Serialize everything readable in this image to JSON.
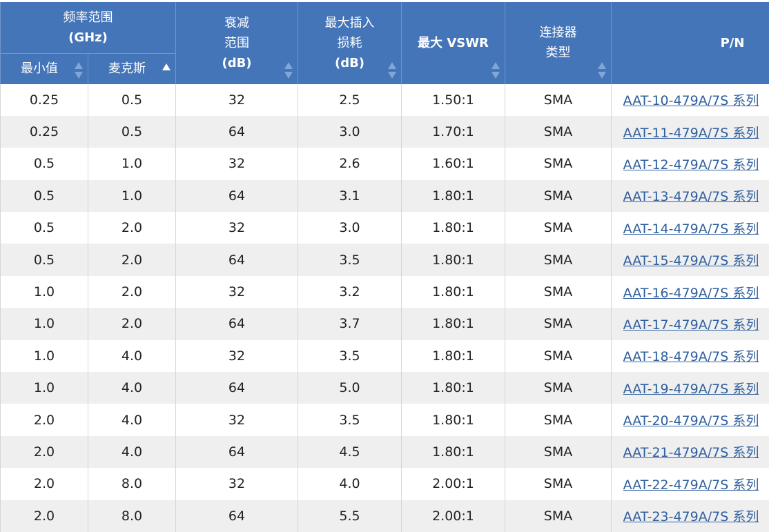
{
  "header": {
    "freq_group": [
      "频率范围",
      "(GHz)"
    ],
    "min": "最小值",
    "max": "麦克斯",
    "atten": [
      "衰减",
      "范围",
      "(dB)"
    ],
    "insertion": [
      "最大插入",
      "损耗",
      "(dB)"
    ],
    "vswr": "最大 VSWR",
    "connector": [
      "连接器",
      "类型"
    ],
    "pn": "P/N"
  },
  "sort": {
    "sorted_column": "麦克斯",
    "direction": "ascending"
  },
  "colors": {
    "header_bg": "#4475b8",
    "link": "#2f5f9e",
    "alt_row": "#efefef"
  },
  "rows": [
    [
      "0.25",
      "0.5",
      "32",
      "2.5",
      "1.50:1",
      "SMA",
      "AAT-10-479A/7S 系列"
    ],
    [
      "0.25",
      "0.5",
      "64",
      "3.0",
      "1.70:1",
      "SMA",
      "AAT-11-479A/7S 系列"
    ],
    [
      "0.5",
      "1.0",
      "32",
      "2.6",
      "1.60:1",
      "SMA",
      "AAT-12-479A/7S 系列"
    ],
    [
      "0.5",
      "1.0",
      "64",
      "3.1",
      "1.80:1",
      "SMA",
      "AAT-13-479A/7S 系列"
    ],
    [
      "0.5",
      "2.0",
      "32",
      "3.0",
      "1.80:1",
      "SMA",
      "AAT-14-479A/7S 系列"
    ],
    [
      "0.5",
      "2.0",
      "64",
      "3.5",
      "1.80:1",
      "SMA",
      "AAT-15-479A/7S 系列"
    ],
    [
      "1.0",
      "2.0",
      "32",
      "3.2",
      "1.80:1",
      "SMA",
      "AAT-16-479A/7S 系列"
    ],
    [
      "1.0",
      "2.0",
      "64",
      "3.7",
      "1.80:1",
      "SMA",
      "AAT-17-479A/7S 系列"
    ],
    [
      "1.0",
      "4.0",
      "32",
      "3.5",
      "1.80:1",
      "SMA",
      "AAT-18-479A/7S 系列"
    ],
    [
      "1.0",
      "4.0",
      "64",
      "5.0",
      "1.80:1",
      "SMA",
      "AAT-19-479A/7S 系列"
    ],
    [
      "2.0",
      "4.0",
      "32",
      "3.5",
      "1.80:1",
      "SMA",
      "AAT-20-479A/7S 系列"
    ],
    [
      "2.0",
      "4.0",
      "64",
      "4.5",
      "1.80:1",
      "SMA",
      "AAT-21-479A/7S 系列"
    ],
    [
      "2.0",
      "8.0",
      "32",
      "4.0",
      "2.00:1",
      "SMA",
      "AAT-22-479A/7S 系列"
    ],
    [
      "2.0",
      "8.0",
      "64",
      "5.5",
      "2.00:1",
      "SMA",
      "AAT-23-479A/7S 系列"
    ]
  ]
}
